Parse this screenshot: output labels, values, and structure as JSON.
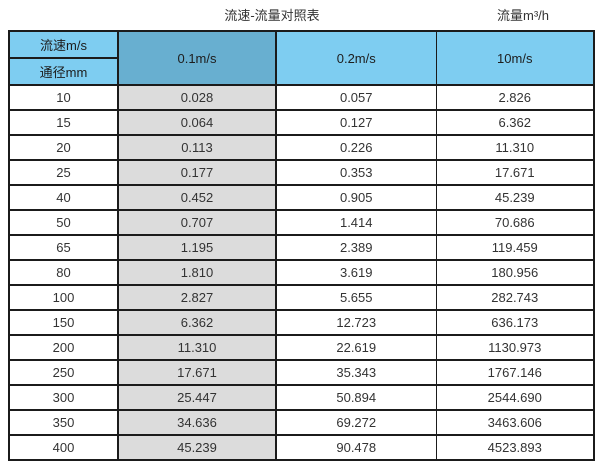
{
  "page": {
    "title_left": "流速-流量对照表",
    "title_right": "流量m³/h"
  },
  "table": {
    "header": {
      "corner_top": "流速m/s",
      "corner_bottom": "通径mm",
      "columns": [
        "0.1m/s",
        "0.2m/s",
        "10m/s"
      ],
      "selected_column": "0.1m/s"
    },
    "rows": [
      {
        "dn": "10",
        "values": [
          "0.028",
          "0.057",
          "2.826"
        ]
      },
      {
        "dn": "15",
        "values": [
          "0.064",
          "0.127",
          "6.362"
        ]
      },
      {
        "dn": "20",
        "values": [
          "0.113",
          "0.226",
          "11.310"
        ]
      },
      {
        "dn": "25",
        "values": [
          "0.177",
          "0.353",
          "17.671"
        ]
      },
      {
        "dn": "40",
        "values": [
          "0.452",
          "0.905",
          "45.239"
        ]
      },
      {
        "dn": "50",
        "values": [
          "0.707",
          "1.414",
          "70.686"
        ]
      },
      {
        "dn": "65",
        "values": [
          "1.195",
          "2.389",
          "119.459"
        ]
      },
      {
        "dn": "80",
        "values": [
          "1.810",
          "3.619",
          "180.956"
        ]
      },
      {
        "dn": "100",
        "values": [
          "2.827",
          "5.655",
          "282.743"
        ]
      },
      {
        "dn": "150",
        "values": [
          "6.362",
          "12.723",
          "636.173"
        ]
      },
      {
        "dn": "200",
        "values": [
          "11.310",
          "22.619",
          "1130.973"
        ]
      },
      {
        "dn": "250",
        "values": [
          "17.671",
          "35.343",
          "1767.146"
        ]
      },
      {
        "dn": "300",
        "values": [
          "25.447",
          "50.894",
          "2544.690"
        ]
      },
      {
        "dn": "350",
        "values": [
          "34.636",
          "69.272",
          "3463.606"
        ]
      },
      {
        "dn": "400",
        "values": [
          "45.239",
          "90.478",
          "4523.893"
        ]
      }
    ]
  },
  "colors": {
    "header_light_blue": "#7ecdf1",
    "header_dark_blue": "#68afd0",
    "selected_column_gray": "#dcdcdc",
    "border": "#1b1b1b"
  }
}
